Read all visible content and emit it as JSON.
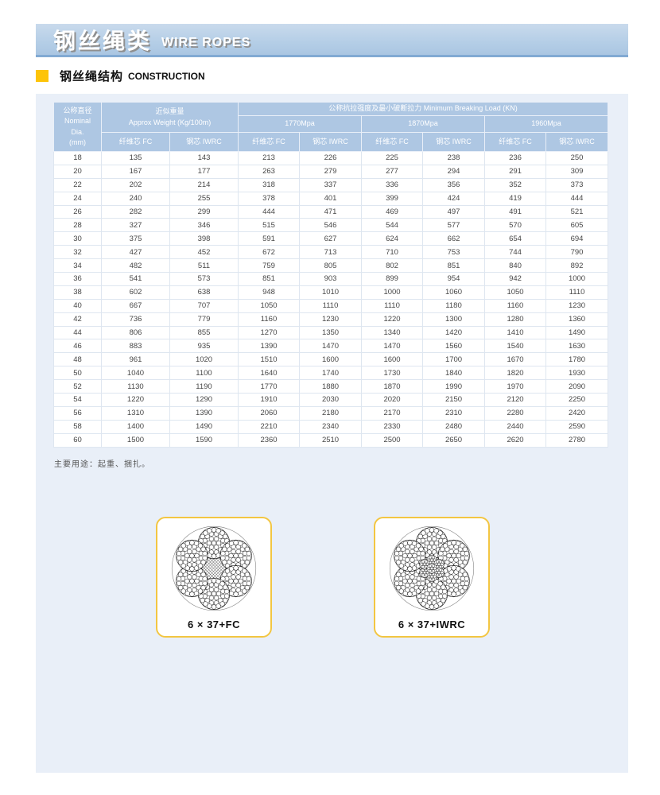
{
  "banner": {
    "title_zh": "钢丝绳类",
    "title_en": "WIRE ROPES"
  },
  "section": {
    "title_zh": "钢丝绳结构",
    "title_en": "CONSTRUCTION"
  },
  "table": {
    "header": {
      "dia_lines": [
        "公称直径",
        "Nominal",
        "Dia.",
        "(mm)"
      ],
      "weight_zh": "近似重量",
      "weight_en": "Approx Weight (Kg/100m)",
      "breaking": "公称抗拉强度及最小破断拉力 Minimum Breaking Load (KN)",
      "grades": [
        "1770Mpa",
        "1870Mpa",
        "1960Mpa"
      ],
      "fc": "纤维芯 FC",
      "iwrc": "钢芯 IWRC"
    },
    "rows": [
      [
        18,
        135,
        143,
        213,
        226,
        225,
        238,
        236,
        250
      ],
      [
        20,
        167,
        177,
        263,
        279,
        277,
        294,
        291,
        309
      ],
      [
        22,
        202,
        214,
        318,
        337,
        336,
        356,
        352,
        373
      ],
      [
        24,
        240,
        255,
        378,
        401,
        399,
        424,
        419,
        444
      ],
      [
        26,
        282,
        299,
        444,
        471,
        469,
        497,
        491,
        521
      ],
      [
        28,
        327,
        346,
        515,
        546,
        544,
        577,
        570,
        605
      ],
      [
        30,
        375,
        398,
        591,
        627,
        624,
        662,
        654,
        694
      ],
      [
        32,
        427,
        452,
        672,
        713,
        710,
        753,
        744,
        790
      ],
      [
        34,
        482,
        511,
        759,
        805,
        802,
        851,
        840,
        892
      ],
      [
        36,
        541,
        573,
        851,
        903,
        899,
        954,
        942,
        1000
      ],
      [
        38,
        602,
        638,
        948,
        1010,
        1000,
        1060,
        1050,
        1110
      ],
      [
        40,
        667,
        707,
        1050,
        1110,
        1110,
        1180,
        1160,
        1230
      ],
      [
        42,
        736,
        779,
        1160,
        1230,
        1220,
        1300,
        1280,
        1360
      ],
      [
        44,
        806,
        855,
        1270,
        1350,
        1340,
        1420,
        1410,
        1490
      ],
      [
        46,
        883,
        935,
        1390,
        1470,
        1470,
        1560,
        1540,
        1630
      ],
      [
        48,
        961,
        1020,
        1510,
        1600,
        1600,
        1700,
        1670,
        1780
      ],
      [
        50,
        1040,
        1100,
        1640,
        1740,
        1730,
        1840,
        1820,
        1930
      ],
      [
        52,
        1130,
        1190,
        1770,
        1880,
        1870,
        1990,
        1970,
        2090
      ],
      [
        54,
        1220,
        1290,
        1910,
        2030,
        2020,
        2150,
        2120,
        2250
      ],
      [
        56,
        1310,
        1390,
        2060,
        2180,
        2170,
        2310,
        2280,
        2420
      ],
      [
        58,
        1400,
        1490,
        2210,
        2340,
        2330,
        2480,
        2440,
        2590
      ],
      [
        60,
        1500,
        1590,
        2360,
        2510,
        2500,
        2650,
        2620,
        2780
      ]
    ]
  },
  "note": "主要用途：起重、捆扎。",
  "diagrams": [
    {
      "label": "6 × 37+FC",
      "core": "fc"
    },
    {
      "label": "6 × 37+IWRC",
      "core": "iwrc"
    }
  ],
  "colors": {
    "accent_yellow": "#fdc408",
    "banner_blue": "#b6cfe7",
    "header_blue": "#aec7e3",
    "panel_blue": "#e9eff8",
    "card_border": "#f3c642"
  }
}
